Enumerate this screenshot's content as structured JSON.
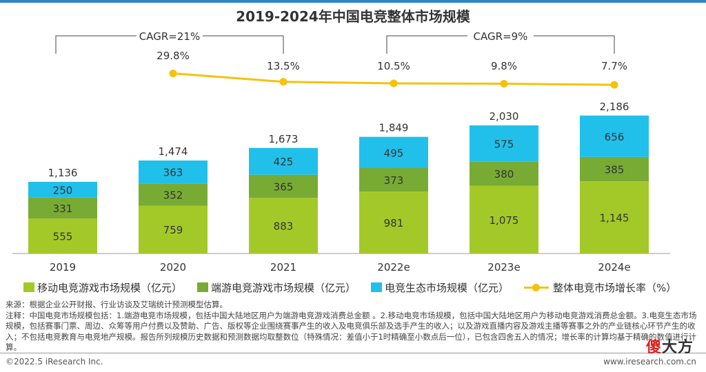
{
  "title": "2019-2024年中国电竞整体市场规模",
  "chart_data": {
    "type": "bar",
    "categories": [
      "2019",
      "2020",
      "2021",
      "2022e",
      "2023e",
      "2024e"
    ],
    "series": [
      {
        "name": "移动电竞游戏市场规模（亿元）",
        "values": [
          555,
          759,
          883,
          981,
          1075,
          1145
        ],
        "color": "#a3c928",
        "labels": [
          "555",
          "759",
          "883",
          "981",
          "1,075",
          "1,145"
        ]
      },
      {
        "name": "端游电竞游戏市场规模（亿元）",
        "values": [
          331,
          352,
          365,
          373,
          380,
          385
        ],
        "color": "#78ab34",
        "labels": [
          "331",
          "352",
          "365",
          "373",
          "380",
          "385"
        ]
      },
      {
        "name": "电竞生态市场规模（亿元）",
        "values": [
          250,
          363,
          425,
          495,
          575,
          656
        ],
        "color": "#20c0ea",
        "labels": [
          "250",
          "363",
          "425",
          "495",
          "575",
          "656"
        ]
      }
    ],
    "totals": [
      "1,136",
      "1,474",
      "1,673",
      "1,849",
      "2,030",
      "2,186"
    ],
    "line": {
      "name": "整体电竞市场增长率（%）",
      "color": "#f4c20d",
      "x": [
        "2020",
        "2021",
        "2022e",
        "2023e",
        "2024e"
      ],
      "values": [
        29.8,
        13.5,
        10.5,
        9.8,
        7.7
      ],
      "labels": [
        "29.8%",
        "13.5%",
        "10.5%",
        "9.8%",
        "7.7%"
      ]
    },
    "cagr": [
      {
        "label": "CAGR=21%",
        "from": "2019",
        "to": "2021"
      },
      {
        "label": "CAGR=9%",
        "from": "2022e",
        "to": "2024e"
      }
    ],
    "stacked": true,
    "stack_order": "bottom-to-top",
    "grid": false,
    "legend_position": "bottom"
  },
  "legend": [
    {
      "label": "移动电竞游戏市场规模（亿元）",
      "color": "#a3c928",
      "kind": "box"
    },
    {
      "label": "端游电竞游戏市场规模（亿元）",
      "color": "#78ab34",
      "kind": "box"
    },
    {
      "label": "电竞生态市场规模（亿元）",
      "color": "#20c0ea",
      "kind": "box"
    },
    {
      "label": "整体电竞市场增长率（%）",
      "color": "#f4c20d",
      "kind": "line"
    }
  ],
  "notes": {
    "source": "来源：根据企业公开财报、行业访谈及艾瑞统计预测模型估算。",
    "note": "注释：中国电竞市场规模包括：1.端游电竞市场规模，包括中国大陆地区用户为端游电竞游戏消费总金额 。2.移动电竞市场规模，包括中国大陆地区用户为移动电竞游戏消费总金额。3.电竞生态市场规模，包括赛事门票、周边、众筹等用户付费以及赞助、广告、版权等企业围绕赛事产生的收入及电竞俱乐部及选手产生的收入；以及游戏直播内容及游戏主播等赛事之外的产业链核心环节产生的收入；不包括电竞教育与电竞地产规模。报告所列规模历史数据和预测数据均取整数位（特殊情况：差值小于1时精确至小数点后一位），已包含四舍五入的情况；增长率的计算均基于精确的数值进行计算。"
  },
  "footer": {
    "left": "©2022.5 iResearch Inc.",
    "right": "www.iresearch.com.cn"
  },
  "watermark": {
    "first": "傻",
    "rest": "大方"
  }
}
